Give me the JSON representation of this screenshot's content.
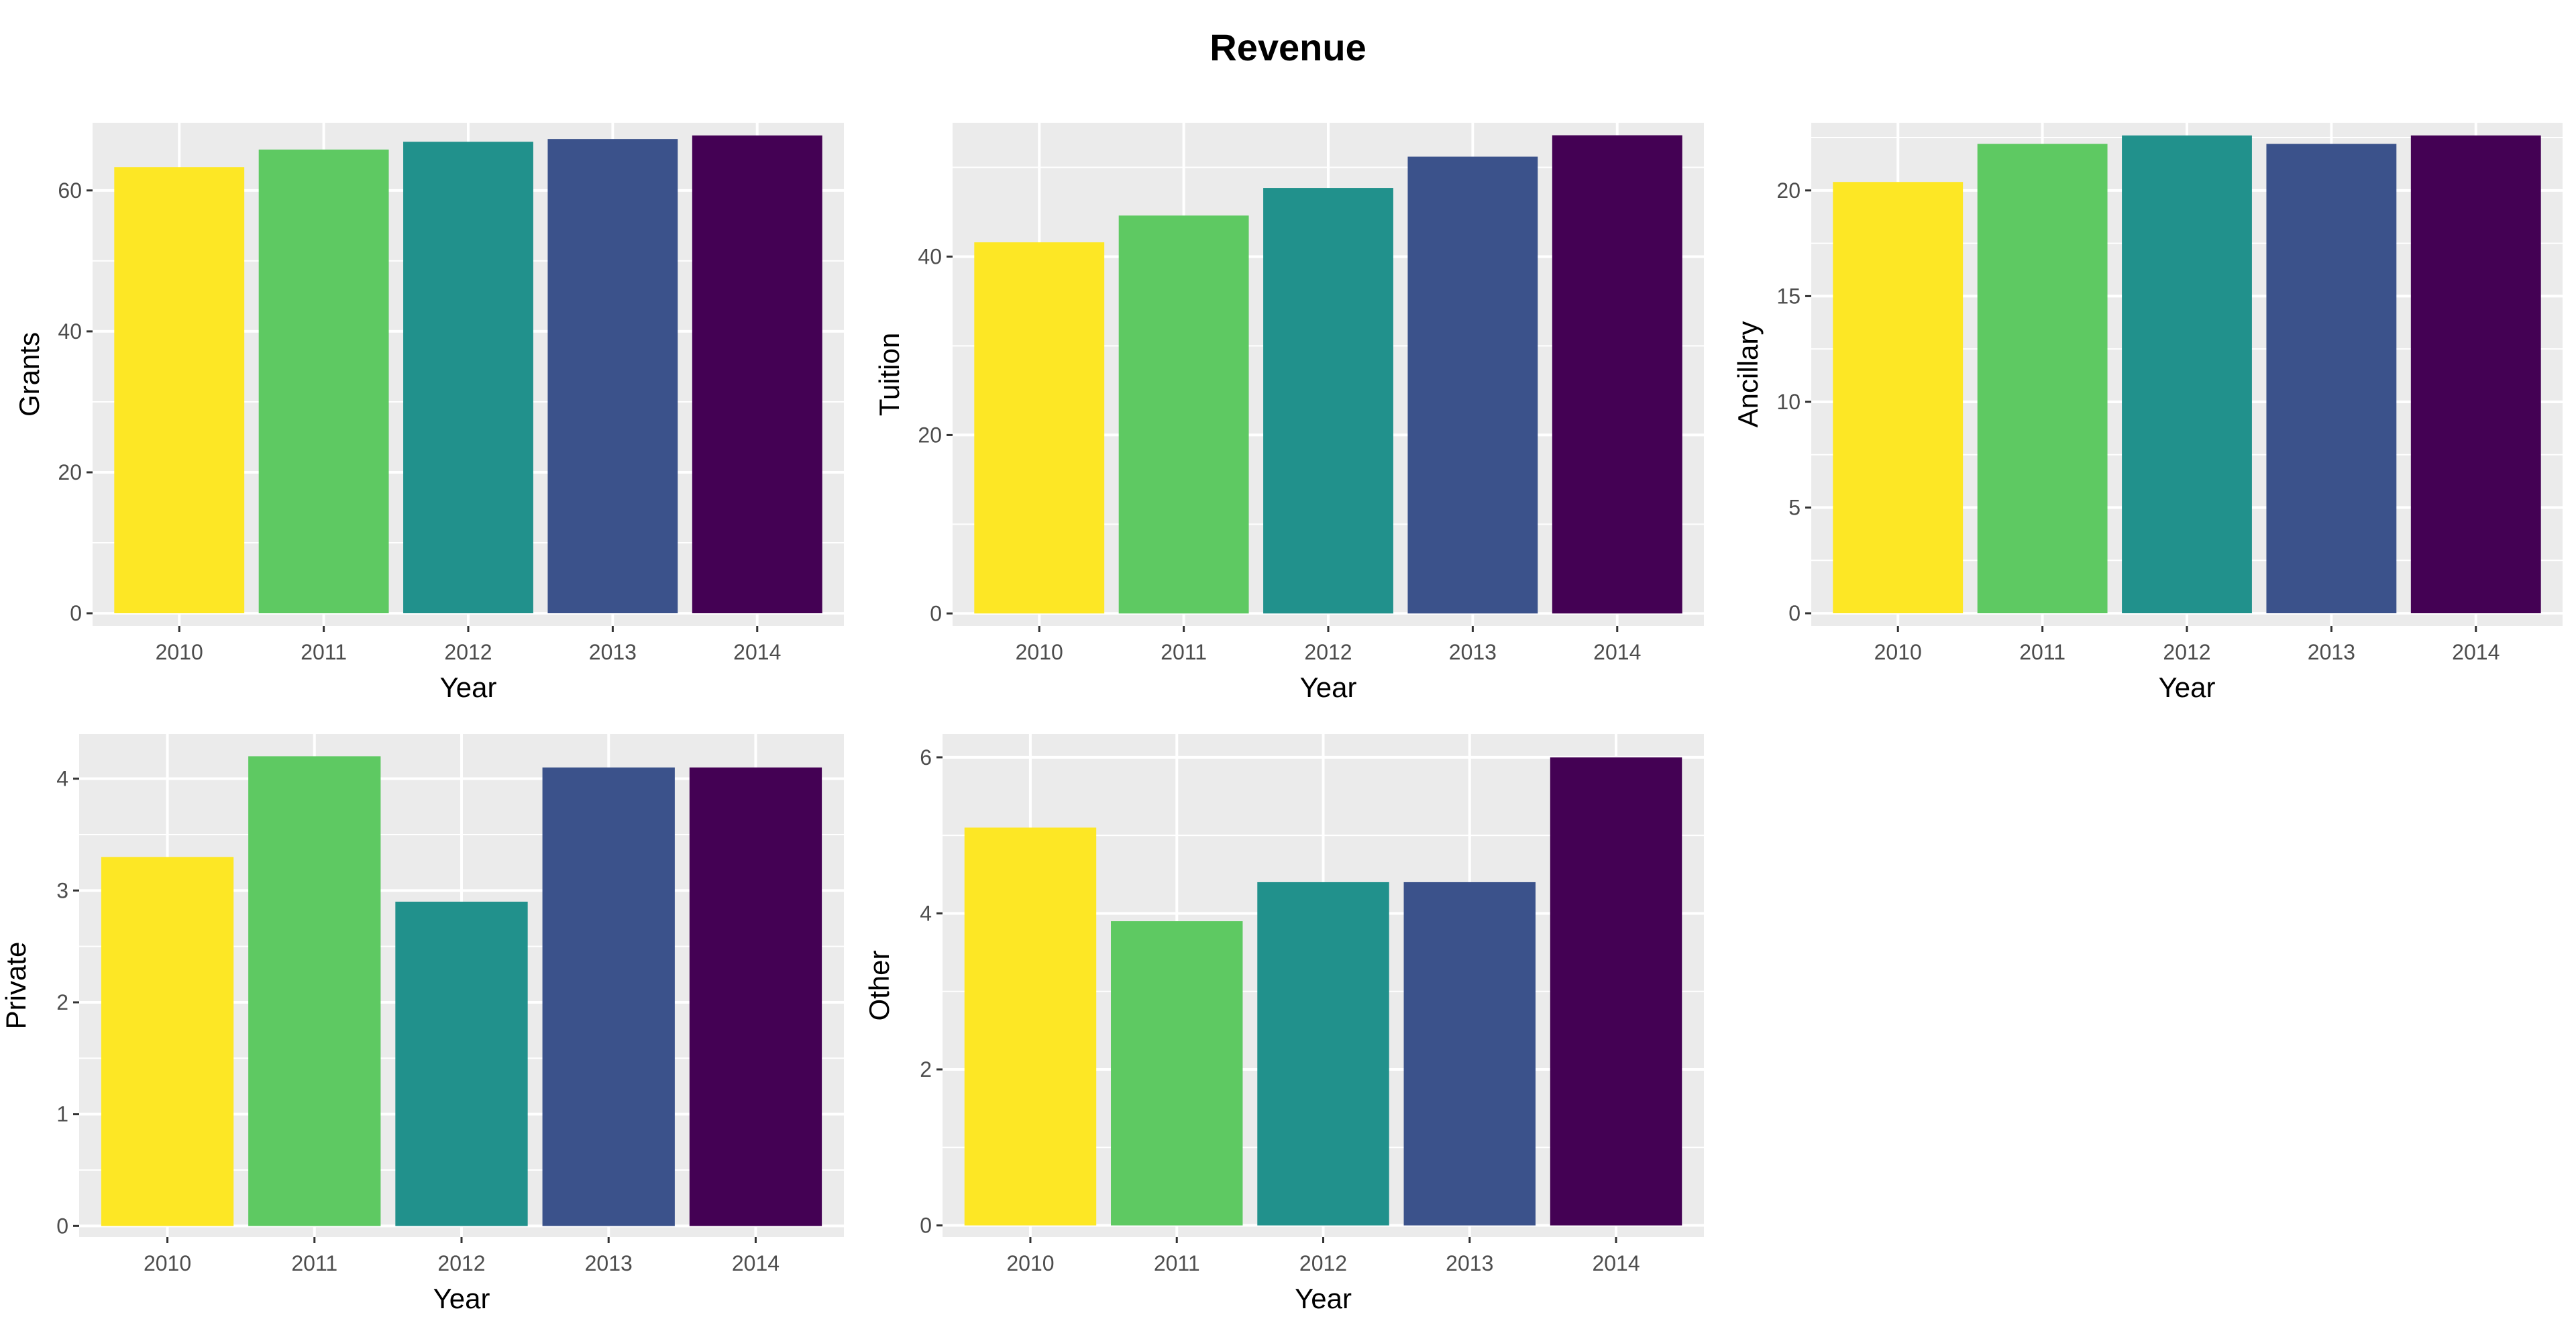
{
  "title": "Revenue",
  "palette": {
    "panel_background": "#ebebeb",
    "gridline": "#ffffff",
    "tick_text": "#4d4d4d",
    "tick_mark": "#333333",
    "bar_colors": [
      "#fde725",
      "#5ec962",
      "#21918c",
      "#3b528b",
      "#440154"
    ]
  },
  "chart_data": [
    {
      "type": "bar",
      "xlabel": "Year",
      "ylabel": "Grants",
      "categories": [
        "2010",
        "2011",
        "2012",
        "2013",
        "2014"
      ],
      "values": [
        63.3,
        65.8,
        66.9,
        67.3,
        67.8
      ],
      "ylim": [
        -1.8,
        69.6
      ],
      "yticks": [
        0,
        20,
        40,
        60
      ],
      "ytick_labels": [
        "0",
        "20",
        "40",
        "60"
      ],
      "grid": true
    },
    {
      "type": "bar",
      "xlabel": "Year",
      "ylabel": "Tuition",
      "categories": [
        "2010",
        "2011",
        "2012",
        "2013",
        "2014"
      ],
      "values": [
        41.6,
        44.6,
        47.7,
        51.2,
        53.6
      ],
      "ylim": [
        -1.4,
        55.0
      ],
      "yticks": [
        0,
        20,
        40
      ],
      "ytick_labels": [
        "0",
        "20",
        "40"
      ],
      "grid": true
    },
    {
      "type": "bar",
      "xlabel": "Year",
      "ylabel": "Ancillary",
      "categories": [
        "2010",
        "2011",
        "2012",
        "2013",
        "2014"
      ],
      "values": [
        20.4,
        22.2,
        22.6,
        22.2,
        22.6
      ],
      "ylim": [
        -0.6,
        23.2
      ],
      "yticks": [
        0,
        5,
        10,
        15,
        20
      ],
      "ytick_labels": [
        "0",
        "5",
        "10",
        "15",
        "20"
      ],
      "grid": true
    },
    {
      "type": "bar",
      "xlabel": "Year",
      "ylabel": "Private",
      "categories": [
        "2010",
        "2011",
        "2012",
        "2013",
        "2014"
      ],
      "values": [
        3.3,
        4.2,
        2.9,
        4.1,
        4.1
      ],
      "ylim": [
        -0.1,
        4.4
      ],
      "yticks": [
        0,
        1,
        2,
        3,
        4
      ],
      "ytick_labels": [
        "0",
        "1",
        "2",
        "3",
        "4"
      ],
      "grid": true
    },
    {
      "type": "bar",
      "xlabel": "Year",
      "ylabel": "Other",
      "categories": [
        "2010",
        "2011",
        "2012",
        "2013",
        "2014"
      ],
      "values": [
        5.1,
        3.9,
        4.4,
        4.4,
        6.0
      ],
      "ylim": [
        -0.15,
        6.3
      ],
      "yticks": [
        0,
        2,
        4,
        6
      ],
      "ytick_labels": [
        "0",
        "2",
        "4",
        "6"
      ],
      "grid": true
    }
  ]
}
